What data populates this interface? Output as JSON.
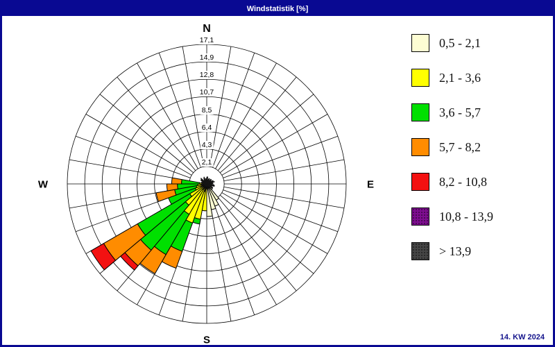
{
  "title": "Windstatistik [%]",
  "footer": {
    "date_label": "14. KW 2024"
  },
  "compass": {
    "north": "N",
    "south": "S",
    "east": "E",
    "west": "W"
  },
  "colors": {
    "navy": "#090992",
    "cream": "#fdfdd3",
    "yellow": "#ffff00",
    "green": "#00e000",
    "orange": "#ff8c00",
    "red": "#f31111",
    "purple": "#7e0d90",
    "gray": "#454545",
    "black": "#141414",
    "grid": "#000000"
  },
  "legend": [
    {
      "label": "0,5 - 2,1",
      "color": "cream",
      "dotted": false
    },
    {
      "label": "2,1 - 3,6",
      "color": "yellow",
      "dotted": false
    },
    {
      "label": "3,6 - 5,7",
      "color": "green",
      "dotted": false
    },
    {
      "label": "5,7 - 8,2",
      "color": "orange",
      "dotted": false
    },
    {
      "label": "8,2 - 10,8",
      "color": "red",
      "dotted": false
    },
    {
      "label": "10,8 - 13,9",
      "color": "purple",
      "dotted": true
    },
    {
      "label": "> 13,9",
      "color": "gray",
      "dotted": true
    }
  ],
  "chart_data": {
    "type": "windrose",
    "unit": "%",
    "title": "Windstatistik [%]",
    "sector_width_deg": 10,
    "radial_max": 17.1,
    "ring_values": [
      2.1,
      4.3,
      6.4,
      8.5,
      10.7,
      12.8,
      14.9,
      17.1
    ],
    "ring_labels": [
      "2,1",
      "4,3",
      "6,4",
      "8,5",
      "10,7",
      "12,8",
      "14,9",
      "17,1"
    ],
    "speed_classes": [
      "0,5 - 2,1",
      "2,1 - 3,6",
      "3,6 - 5,7",
      "5,7 - 8,2",
      "8,2 - 10,8",
      "10,8 - 13,9",
      "> 13,9"
    ],
    "bars": [
      {
        "bearing": 135,
        "stack": [
          [
            "cream",
            0.9
          ]
        ]
      },
      {
        "bearing": 145,
        "stack": [
          [
            "cream",
            2.3
          ]
        ]
      },
      {
        "bearing": 155,
        "stack": [
          [
            "cream",
            2.9
          ]
        ]
      },
      {
        "bearing": 165,
        "stack": [
          [
            "cream",
            3.2
          ]
        ]
      },
      {
        "bearing": 175,
        "stack": [
          [
            "cream",
            4.0
          ]
        ]
      },
      {
        "bearing": 185,
        "stack": [
          [
            "cream",
            0.4
          ],
          [
            "yellow",
            3.3
          ]
        ]
      },
      {
        "bearing": 195,
        "stack": [
          [
            "cream",
            0.4
          ],
          [
            "yellow",
            4.4
          ],
          [
            "green",
            5.0
          ]
        ]
      },
      {
        "bearing": 205,
        "stack": [
          [
            "cream",
            0.4
          ],
          [
            "yellow",
            5.1
          ],
          [
            "green",
            8.8
          ],
          [
            "orange",
            11.0
          ]
        ]
      },
      {
        "bearing": 215,
        "stack": [
          [
            "cream",
            0.4
          ],
          [
            "yellow",
            4.3
          ],
          [
            "green",
            10.0
          ],
          [
            "orange",
            12.7
          ]
        ]
      },
      {
        "bearing": 225,
        "stack": [
          [
            "cream",
            0.4
          ],
          [
            "yellow",
            3.4
          ],
          [
            "green",
            10.6
          ],
          [
            "orange",
            13.1
          ],
          [
            "red",
            13.8
          ]
        ]
      },
      {
        "bearing": 235,
        "stack": [
          [
            "cream",
            0.3
          ],
          [
            "yellow",
            2.4
          ],
          [
            "green",
            9.8
          ],
          [
            "orange",
            14.6
          ],
          [
            "red",
            16.4
          ]
        ]
      },
      {
        "bearing": 245,
        "stack": [
          [
            "cream",
            0.3
          ],
          [
            "yellow",
            1.5
          ],
          [
            "green",
            5.0
          ]
        ]
      },
      {
        "bearing": 255,
        "stack": [
          [
            "cream",
            0.3
          ],
          [
            "yellow",
            1.3
          ],
          [
            "green",
            4.0
          ],
          [
            "orange",
            6.3
          ]
        ]
      },
      {
        "bearing": 265,
        "stack": [
          [
            "cream",
            0.3
          ],
          [
            "yellow",
            1.1
          ],
          [
            "green",
            3.6
          ],
          [
            "orange",
            4.9
          ]
        ]
      },
      {
        "bearing": 275,
        "stack": [
          [
            "cream",
            0.2
          ],
          [
            "yellow",
            0.9
          ],
          [
            "green",
            3.1
          ],
          [
            "orange",
            4.3
          ]
        ]
      },
      {
        "bearing": 285,
        "stack": [
          [
            "black",
            0.7
          ]
        ]
      },
      {
        "bearing": 295,
        "stack": [
          [
            "black",
            0.5
          ]
        ]
      },
      {
        "bearing": 305,
        "stack": [
          [
            "black",
            0.9
          ]
        ]
      },
      {
        "bearing": 315,
        "stack": [
          [
            "black",
            0.4
          ]
        ]
      },
      {
        "bearing": 325,
        "stack": [
          [
            "black",
            0.6
          ]
        ]
      },
      {
        "bearing": 335,
        "stack": [
          [
            "black",
            0.8
          ]
        ]
      },
      {
        "bearing": 345,
        "stack": [
          [
            "black",
            0.5
          ]
        ]
      },
      {
        "bearing": 355,
        "stack": [
          [
            "black",
            0.7
          ]
        ]
      },
      {
        "bearing": 5,
        "stack": [
          [
            "black",
            0.9
          ]
        ]
      },
      {
        "bearing": 15,
        "stack": [
          [
            "black",
            0.5
          ]
        ]
      },
      {
        "bearing": 25,
        "stack": [
          [
            "black",
            0.7
          ]
        ]
      },
      {
        "bearing": 35,
        "stack": [
          [
            "black",
            0.4
          ]
        ]
      },
      {
        "bearing": 45,
        "stack": [
          [
            "black",
            0.8
          ]
        ]
      },
      {
        "bearing": 55,
        "stack": [
          [
            "black",
            0.6
          ]
        ]
      },
      {
        "bearing": 65,
        "stack": [
          [
            "black",
            0.9
          ]
        ]
      },
      {
        "bearing": 75,
        "stack": [
          [
            "black",
            0.5
          ]
        ]
      },
      {
        "bearing": 85,
        "stack": [
          [
            "black",
            0.8
          ]
        ]
      },
      {
        "bearing": 95,
        "stack": [
          [
            "black",
            0.6
          ]
        ]
      },
      {
        "bearing": 105,
        "stack": [
          [
            "black",
            1.0
          ]
        ]
      },
      {
        "bearing": 115,
        "stack": [
          [
            "black",
            0.7
          ]
        ]
      },
      {
        "bearing": 125,
        "stack": [
          [
            "black",
            0.9
          ]
        ]
      }
    ]
  }
}
